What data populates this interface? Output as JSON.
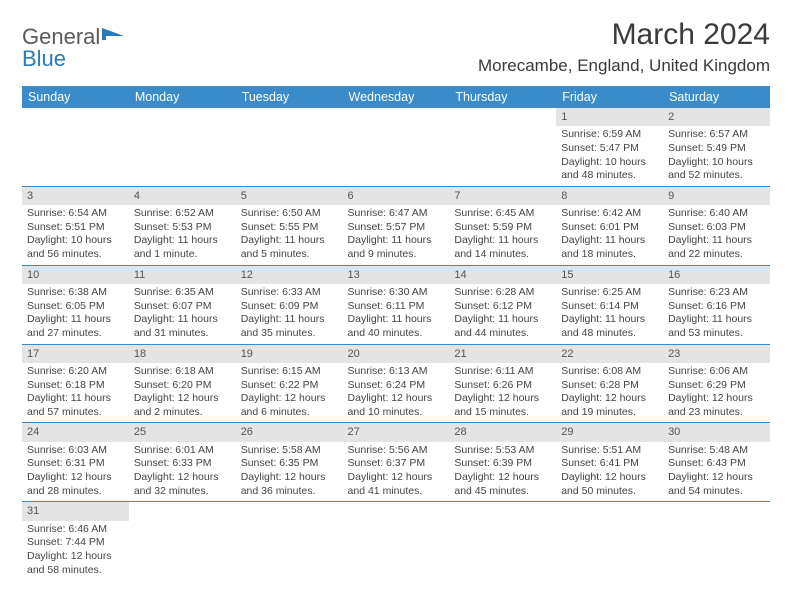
{
  "logo": {
    "name": "General",
    "name2": "Blue"
  },
  "title": "March 2024",
  "location": "Morecambe, England, United Kingdom",
  "colors": {
    "header_bg": "#3a8bc9",
    "header_fg": "#ffffff",
    "daynum_bg": "#e4e4e4",
    "rule": "#3a8bc9",
    "text": "#444444"
  },
  "weekdays": [
    "Sunday",
    "Monday",
    "Tuesday",
    "Wednesday",
    "Thursday",
    "Friday",
    "Saturday"
  ],
  "cells": [
    [
      null,
      null,
      null,
      null,
      null,
      {
        "n": "1",
        "sr": "6:59 AM",
        "ss": "5:47 PM",
        "dl": "10 hours and 48 minutes."
      },
      {
        "n": "2",
        "sr": "6:57 AM",
        "ss": "5:49 PM",
        "dl": "10 hours and 52 minutes."
      }
    ],
    [
      {
        "n": "3",
        "sr": "6:54 AM",
        "ss": "5:51 PM",
        "dl": "10 hours and 56 minutes."
      },
      {
        "n": "4",
        "sr": "6:52 AM",
        "ss": "5:53 PM",
        "dl": "11 hours and 1 minute."
      },
      {
        "n": "5",
        "sr": "6:50 AM",
        "ss": "5:55 PM",
        "dl": "11 hours and 5 minutes."
      },
      {
        "n": "6",
        "sr": "6:47 AM",
        "ss": "5:57 PM",
        "dl": "11 hours and 9 minutes."
      },
      {
        "n": "7",
        "sr": "6:45 AM",
        "ss": "5:59 PM",
        "dl": "11 hours and 14 minutes."
      },
      {
        "n": "8",
        "sr": "6:42 AM",
        "ss": "6:01 PM",
        "dl": "11 hours and 18 minutes."
      },
      {
        "n": "9",
        "sr": "6:40 AM",
        "ss": "6:03 PM",
        "dl": "11 hours and 22 minutes."
      }
    ],
    [
      {
        "n": "10",
        "sr": "6:38 AM",
        "ss": "6:05 PM",
        "dl": "11 hours and 27 minutes."
      },
      {
        "n": "11",
        "sr": "6:35 AM",
        "ss": "6:07 PM",
        "dl": "11 hours and 31 minutes."
      },
      {
        "n": "12",
        "sr": "6:33 AM",
        "ss": "6:09 PM",
        "dl": "11 hours and 35 minutes."
      },
      {
        "n": "13",
        "sr": "6:30 AM",
        "ss": "6:11 PM",
        "dl": "11 hours and 40 minutes."
      },
      {
        "n": "14",
        "sr": "6:28 AM",
        "ss": "6:12 PM",
        "dl": "11 hours and 44 minutes."
      },
      {
        "n": "15",
        "sr": "6:25 AM",
        "ss": "6:14 PM",
        "dl": "11 hours and 48 minutes."
      },
      {
        "n": "16",
        "sr": "6:23 AM",
        "ss": "6:16 PM",
        "dl": "11 hours and 53 minutes."
      }
    ],
    [
      {
        "n": "17",
        "sr": "6:20 AM",
        "ss": "6:18 PM",
        "dl": "11 hours and 57 minutes."
      },
      {
        "n": "18",
        "sr": "6:18 AM",
        "ss": "6:20 PM",
        "dl": "12 hours and 2 minutes."
      },
      {
        "n": "19",
        "sr": "6:15 AM",
        "ss": "6:22 PM",
        "dl": "12 hours and 6 minutes."
      },
      {
        "n": "20",
        "sr": "6:13 AM",
        "ss": "6:24 PM",
        "dl": "12 hours and 10 minutes."
      },
      {
        "n": "21",
        "sr": "6:11 AM",
        "ss": "6:26 PM",
        "dl": "12 hours and 15 minutes."
      },
      {
        "n": "22",
        "sr": "6:08 AM",
        "ss": "6:28 PM",
        "dl": "12 hours and 19 minutes."
      },
      {
        "n": "23",
        "sr": "6:06 AM",
        "ss": "6:29 PM",
        "dl": "12 hours and 23 minutes."
      }
    ],
    [
      {
        "n": "24",
        "sr": "6:03 AM",
        "ss": "6:31 PM",
        "dl": "12 hours and 28 minutes."
      },
      {
        "n": "25",
        "sr": "6:01 AM",
        "ss": "6:33 PM",
        "dl": "12 hours and 32 minutes."
      },
      {
        "n": "26",
        "sr": "5:58 AM",
        "ss": "6:35 PM",
        "dl": "12 hours and 36 minutes."
      },
      {
        "n": "27",
        "sr": "5:56 AM",
        "ss": "6:37 PM",
        "dl": "12 hours and 41 minutes."
      },
      {
        "n": "28",
        "sr": "5:53 AM",
        "ss": "6:39 PM",
        "dl": "12 hours and 45 minutes."
      },
      {
        "n": "29",
        "sr": "5:51 AM",
        "ss": "6:41 PM",
        "dl": "12 hours and 50 minutes."
      },
      {
        "n": "30",
        "sr": "5:48 AM",
        "ss": "6:43 PM",
        "dl": "12 hours and 54 minutes."
      }
    ],
    [
      {
        "n": "31",
        "sr": "6:46 AM",
        "ss": "7:44 PM",
        "dl": "12 hours and 58 minutes."
      },
      null,
      null,
      null,
      null,
      null,
      null
    ]
  ],
  "labels": {
    "sunrise": "Sunrise:",
    "sunset": "Sunset:",
    "daylight": "Daylight:"
  }
}
